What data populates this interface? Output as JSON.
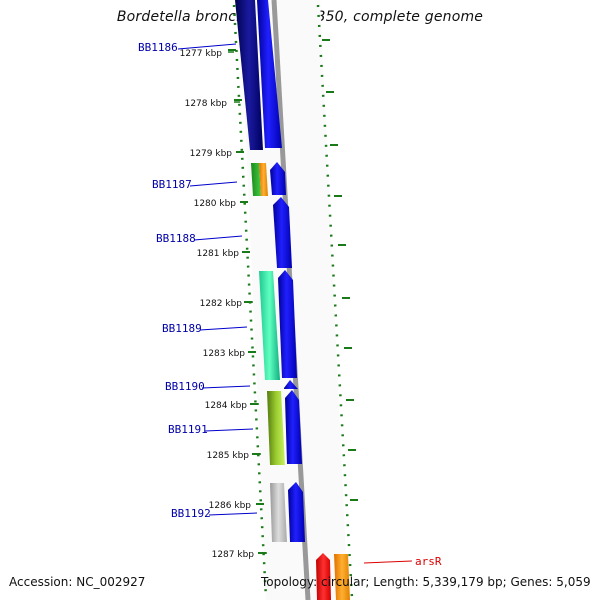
{
  "title": "Bordetella bronchiseptica RB50, complete genome",
  "footer": {
    "accession": "Accession: NC_002927",
    "topology": "Topology: circular; Length: 5,339,179 bp; Genes: 5,059"
  },
  "ticks": [
    "1277 kbp",
    "1278 kbp",
    "1279 kbp",
    "1280 kbp",
    "1281 kbp",
    "1282 kbp",
    "1283 kbp",
    "1284 kbp",
    "1285 kbp",
    "1286 kbp",
    "1287 kbp"
  ],
  "genes": [
    {
      "label": "BB1186",
      "color": "#0000aa"
    },
    {
      "label": "BB1187",
      "color": "#0000aa"
    },
    {
      "label": "BB1188",
      "color": "#0000aa"
    },
    {
      "label": "BB1189",
      "color": "#0000aa"
    },
    {
      "label": "BB1190",
      "color": "#0000aa"
    },
    {
      "label": "BB1191",
      "color": "#0000aa"
    },
    {
      "label": "BB1192",
      "color": "#0000aa"
    },
    {
      "label": "arsR",
      "color": "#dd0000"
    }
  ],
  "colors": {
    "forward_strand": "#0000ee",
    "reverse_dark": "#00007a",
    "gc_dots": "#1a7a1a",
    "backbone": "#999999"
  }
}
